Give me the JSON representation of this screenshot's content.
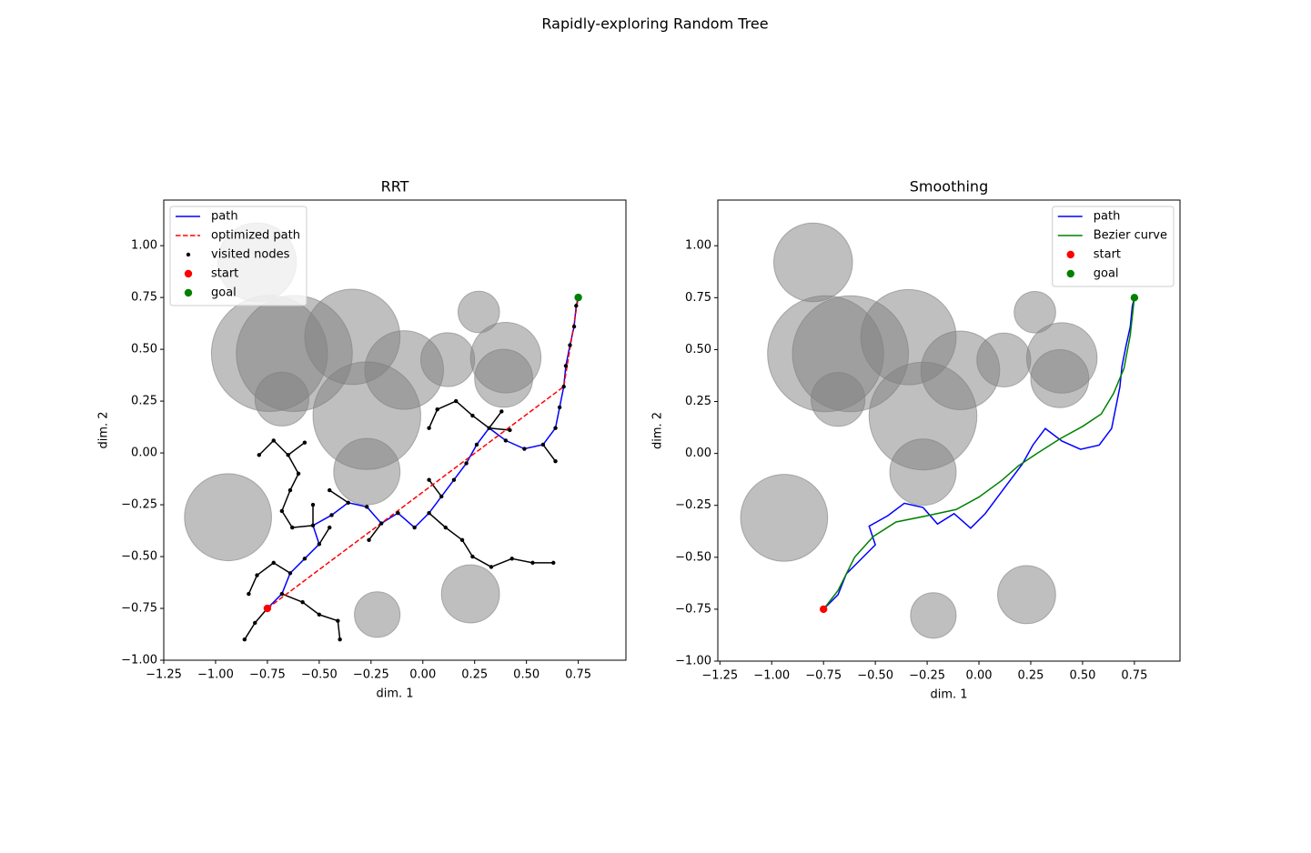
{
  "title": "Rapidly-exploring Random Tree",
  "chart_data": [
    {
      "type": "line",
      "title": "RRT",
      "x_label": "dim. 1",
      "y_label": "dim. 2",
      "xlim": [
        -1.25,
        0.98
      ],
      "ylim": [
        -1.0,
        1.22
      ],
      "xticks": [
        {
          "value": -1.25,
          "label": "−1.25"
        },
        {
          "value": -1.0,
          "label": "−1.00"
        },
        {
          "value": -0.75,
          "label": "−0.75"
        },
        {
          "value": -0.5,
          "label": "−0.50"
        },
        {
          "value": -0.25,
          "label": "−0.25"
        },
        {
          "value": 0,
          "label": "0.00"
        },
        {
          "value": 0.25,
          "label": "0.25"
        },
        {
          "value": 0.5,
          "label": "0.50"
        },
        {
          "value": 0.75,
          "label": "0.75"
        }
      ],
      "yticks": [
        {
          "value": -1.0,
          "label": "−1.00"
        },
        {
          "value": -0.75,
          "label": "−0.75"
        },
        {
          "value": -0.5,
          "label": "−0.50"
        },
        {
          "value": -0.25,
          "label": "−0.25"
        },
        {
          "value": 0,
          "label": "0.00"
        },
        {
          "value": 0.25,
          "label": "0.25"
        },
        {
          "value": 0.5,
          "label": "0.50"
        },
        {
          "value": 0.75,
          "label": "0.75"
        },
        {
          "value": 1.0,
          "label": "1.00"
        }
      ],
      "legend": "upper left",
      "obstacles": {
        "color": "#808080",
        "x": [
          -0.8,
          -0.74,
          -0.62,
          -0.34,
          -0.09,
          0.12,
          0.27,
          0.4,
          0.39,
          -0.68,
          -0.27,
          -0.27,
          -0.94,
          0.23,
          -0.22
        ],
        "y": [
          0.92,
          0.48,
          0.48,
          0.56,
          0.4,
          0.45,
          0.68,
          0.46,
          0.36,
          0.26,
          0.18,
          -0.09,
          -0.31,
          -0.68,
          -0.78
        ],
        "r": [
          0.19,
          0.28,
          0.28,
          0.23,
          0.19,
          0.13,
          0.1,
          0.17,
          0.14,
          0.13,
          0.26,
          0.16,
          0.21,
          0.14,
          0.11
        ]
      },
      "tree": {
        "color": "#000000",
        "segments": [
          [
            -0.64,
            -0.58,
            -0.72,
            -0.53
          ],
          [
            -0.72,
            -0.53,
            -0.8,
            -0.59
          ],
          [
            -0.8,
            -0.59,
            -0.84,
            -0.68
          ],
          [
            -0.75,
            -0.75,
            -0.81,
            -0.82
          ],
          [
            -0.81,
            -0.82,
            -0.86,
            -0.9
          ],
          [
            -0.68,
            -0.68,
            -0.58,
            -0.72
          ],
          [
            -0.58,
            -0.72,
            -0.5,
            -0.78
          ],
          [
            -0.5,
            -0.78,
            -0.41,
            -0.81
          ],
          [
            -0.41,
            -0.81,
            -0.4,
            -0.9
          ],
          [
            -0.53,
            -0.35,
            -0.63,
            -0.36
          ],
          [
            -0.63,
            -0.36,
            -0.68,
            -0.28
          ],
          [
            -0.68,
            -0.28,
            -0.64,
            -0.18
          ],
          [
            -0.64,
            -0.18,
            -0.6,
            -0.1
          ],
          [
            -0.6,
            -0.1,
            -0.65,
            -0.01
          ],
          [
            -0.65,
            -0.01,
            -0.72,
            0.06
          ],
          [
            -0.72,
            0.06,
            -0.79,
            -0.01
          ],
          [
            -0.65,
            -0.01,
            -0.57,
            0.05
          ],
          [
            -0.53,
            -0.35,
            -0.53,
            -0.25
          ],
          [
            -0.36,
            -0.24,
            -0.45,
            -0.18
          ],
          [
            -0.5,
            -0.44,
            -0.45,
            -0.36
          ],
          [
            -0.2,
            -0.34,
            -0.26,
            -0.42
          ],
          [
            0.09,
            -0.21,
            0.03,
            -0.13
          ],
          [
            0.03,
            -0.29,
            0.11,
            -0.36
          ],
          [
            0.11,
            -0.36,
            0.19,
            -0.42
          ],
          [
            0.19,
            -0.42,
            0.24,
            -0.5
          ],
          [
            0.24,
            -0.5,
            0.33,
            -0.55
          ],
          [
            0.33,
            -0.55,
            0.43,
            -0.51
          ],
          [
            0.43,
            -0.51,
            0.53,
            -0.53
          ],
          [
            0.53,
            -0.53,
            0.63,
            -0.53
          ],
          [
            0.32,
            0.12,
            0.24,
            0.18
          ],
          [
            0.24,
            0.18,
            0.16,
            0.25
          ],
          [
            0.16,
            0.25,
            0.07,
            0.21
          ],
          [
            0.07,
            0.21,
            0.03,
            0.12
          ],
          [
            0.32,
            0.12,
            0.38,
            0.2
          ],
          [
            0.32,
            0.12,
            0.42,
            0.11
          ],
          [
            0.58,
            0.04,
            0.64,
            -0.04
          ]
        ]
      },
      "series": [
        {
          "name": "path",
          "color": "#0000ff",
          "style": "line",
          "x": [
            -0.75,
            -0.68,
            -0.64,
            -0.57,
            -0.5,
            -0.53,
            -0.44,
            -0.36,
            -0.27,
            -0.2,
            -0.12,
            -0.04,
            0.03,
            0.09,
            0.15,
            0.21,
            0.26,
            0.32,
            0.4,
            0.49,
            0.58,
            0.64,
            0.66,
            0.68,
            0.69,
            0.71,
            0.73,
            0.74,
            0.75
          ],
          "y": [
            -0.75,
            -0.68,
            -0.58,
            -0.51,
            -0.44,
            -0.35,
            -0.3,
            -0.24,
            -0.26,
            -0.34,
            -0.29,
            -0.36,
            -0.29,
            -0.21,
            -0.13,
            -0.05,
            0.04,
            0.12,
            0.06,
            0.02,
            0.04,
            0.12,
            0.22,
            0.32,
            0.42,
            0.52,
            0.61,
            0.71,
            0.75
          ]
        },
        {
          "name": "optimized path",
          "color": "#ff0000",
          "style": "dashed",
          "x": [
            -0.75,
            0.68,
            0.75
          ],
          "y": [
            -0.75,
            0.32,
            0.75
          ]
        },
        {
          "name": "visited nodes",
          "color": "#000000",
          "style": "points",
          "x": [
            -0.75,
            -0.68,
            -0.64,
            -0.57,
            -0.5,
            -0.53,
            -0.44,
            -0.36,
            -0.27,
            -0.2,
            -0.12,
            -0.04,
            0.03,
            0.09,
            0.15,
            0.21,
            0.26,
            0.32,
            0.4,
            0.49,
            0.58,
            0.64,
            0.66,
            0.68,
            0.69,
            0.71,
            0.73,
            0.74,
            0.75,
            -0.72,
            -0.8,
            -0.84,
            -0.81,
            -0.86,
            -0.58,
            -0.5,
            -0.41,
            -0.4,
            -0.63,
            -0.68,
            -0.64,
            -0.6,
            -0.65,
            -0.72,
            -0.79,
            -0.57,
            -0.53,
            -0.45,
            -0.45,
            -0.26,
            0.03,
            0.11,
            0.19,
            0.24,
            0.33,
            0.43,
            0.53,
            0.63,
            0.24,
            0.16,
            0.07,
            0.03,
            0.38,
            0.42,
            0.64
          ],
          "y": [
            -0.75,
            -0.68,
            -0.58,
            -0.51,
            -0.44,
            -0.35,
            -0.3,
            -0.24,
            -0.26,
            -0.34,
            -0.29,
            -0.36,
            -0.29,
            -0.21,
            -0.13,
            -0.05,
            0.04,
            0.12,
            0.06,
            0.02,
            0.04,
            0.12,
            0.22,
            0.32,
            0.42,
            0.52,
            0.61,
            0.71,
            0.75,
            -0.53,
            -0.59,
            -0.68,
            -0.82,
            -0.9,
            -0.72,
            -0.78,
            -0.81,
            -0.9,
            -0.36,
            -0.28,
            -0.18,
            -0.1,
            -0.01,
            0.06,
            -0.01,
            0.05,
            -0.25,
            -0.18,
            -0.36,
            -0.42,
            -0.13,
            -0.36,
            -0.42,
            -0.5,
            -0.55,
            -0.51,
            -0.53,
            -0.53,
            0.18,
            0.25,
            0.21,
            0.12,
            0.2,
            0.11,
            -0.04
          ]
        },
        {
          "name": "start",
          "color": "#ff0000",
          "style": "markers",
          "x": [
            -0.75
          ],
          "y": [
            -0.75
          ]
        },
        {
          "name": "goal",
          "color": "#008000",
          "style": "markers",
          "x": [
            0.75
          ],
          "y": [
            0.75
          ]
        }
      ]
    },
    {
      "type": "line",
      "title": "Smoothing",
      "x_label": "dim. 1",
      "y_label": "dim. 2",
      "xlim": [
        -1.26,
        0.97
      ],
      "ylim": [
        -1.0,
        1.22
      ],
      "xticks": [
        {
          "value": -1.25,
          "label": "−1.25"
        },
        {
          "value": -1.0,
          "label": "−1.00"
        },
        {
          "value": -0.75,
          "label": "−0.75"
        },
        {
          "value": -0.5,
          "label": "−0.50"
        },
        {
          "value": -0.25,
          "label": "−0.25"
        },
        {
          "value": 0,
          "label": "0.00"
        },
        {
          "value": 0.25,
          "label": "0.25"
        },
        {
          "value": 0.5,
          "label": "0.50"
        },
        {
          "value": 0.75,
          "label": "0.75"
        }
      ],
      "yticks": [
        {
          "value": -1.0,
          "label": "−1.00"
        },
        {
          "value": -0.75,
          "label": "−0.75"
        },
        {
          "value": -0.5,
          "label": "−0.50"
        },
        {
          "value": -0.25,
          "label": "−0.25"
        },
        {
          "value": 0,
          "label": "0.00"
        },
        {
          "value": 0.25,
          "label": "0.25"
        },
        {
          "value": 0.5,
          "label": "0.50"
        },
        {
          "value": 0.75,
          "label": "0.75"
        },
        {
          "value": 1.0,
          "label": "1.00"
        }
      ],
      "legend": "upper right",
      "obstacles": {
        "color": "#808080",
        "x": [
          -0.8,
          -0.74,
          -0.62,
          -0.34,
          -0.09,
          0.12,
          0.27,
          0.4,
          0.39,
          -0.68,
          -0.27,
          -0.27,
          -0.94,
          0.23,
          -0.22
        ],
        "y": [
          0.92,
          0.48,
          0.48,
          0.56,
          0.4,
          0.45,
          0.68,
          0.46,
          0.36,
          0.26,
          0.18,
          -0.09,
          -0.31,
          -0.68,
          -0.78
        ],
        "r": [
          0.19,
          0.28,
          0.28,
          0.23,
          0.19,
          0.13,
          0.1,
          0.17,
          0.14,
          0.13,
          0.26,
          0.16,
          0.21,
          0.14,
          0.11
        ]
      },
      "series": [
        {
          "name": "path",
          "color": "#0000ff",
          "style": "line",
          "x": [
            -0.75,
            -0.68,
            -0.64,
            -0.57,
            -0.5,
            -0.53,
            -0.44,
            -0.36,
            -0.27,
            -0.2,
            -0.12,
            -0.04,
            0.03,
            0.09,
            0.15,
            0.21,
            0.26,
            0.32,
            0.4,
            0.49,
            0.58,
            0.64,
            0.66,
            0.68,
            0.69,
            0.71,
            0.73,
            0.74,
            0.75
          ],
          "y": [
            -0.75,
            -0.68,
            -0.58,
            -0.51,
            -0.44,
            -0.35,
            -0.3,
            -0.24,
            -0.26,
            -0.34,
            -0.29,
            -0.36,
            -0.29,
            -0.21,
            -0.13,
            -0.05,
            0.04,
            0.12,
            0.06,
            0.02,
            0.04,
            0.12,
            0.22,
            0.32,
            0.42,
            0.52,
            0.61,
            0.71,
            0.75
          ]
        },
        {
          "name": "Bezier curve",
          "color": "#008000",
          "style": "line",
          "x": [
            -0.75,
            -0.68,
            -0.6,
            -0.51,
            -0.4,
            -0.25,
            -0.11,
            0.0,
            0.11,
            0.19,
            0.28,
            0.39,
            0.5,
            0.59,
            0.65,
            0.7,
            0.73,
            0.75
          ],
          "y": [
            -0.75,
            -0.66,
            -0.5,
            -0.4,
            -0.33,
            -0.3,
            -0.27,
            -0.21,
            -0.13,
            -0.06,
            0.0,
            0.07,
            0.13,
            0.19,
            0.29,
            0.41,
            0.57,
            0.75
          ]
        },
        {
          "name": "start",
          "color": "#ff0000",
          "style": "markers",
          "x": [
            -0.75
          ],
          "y": [
            -0.75
          ]
        },
        {
          "name": "goal",
          "color": "#008000",
          "style": "markers",
          "x": [
            0.75
          ],
          "y": [
            0.75
          ]
        }
      ]
    }
  ]
}
